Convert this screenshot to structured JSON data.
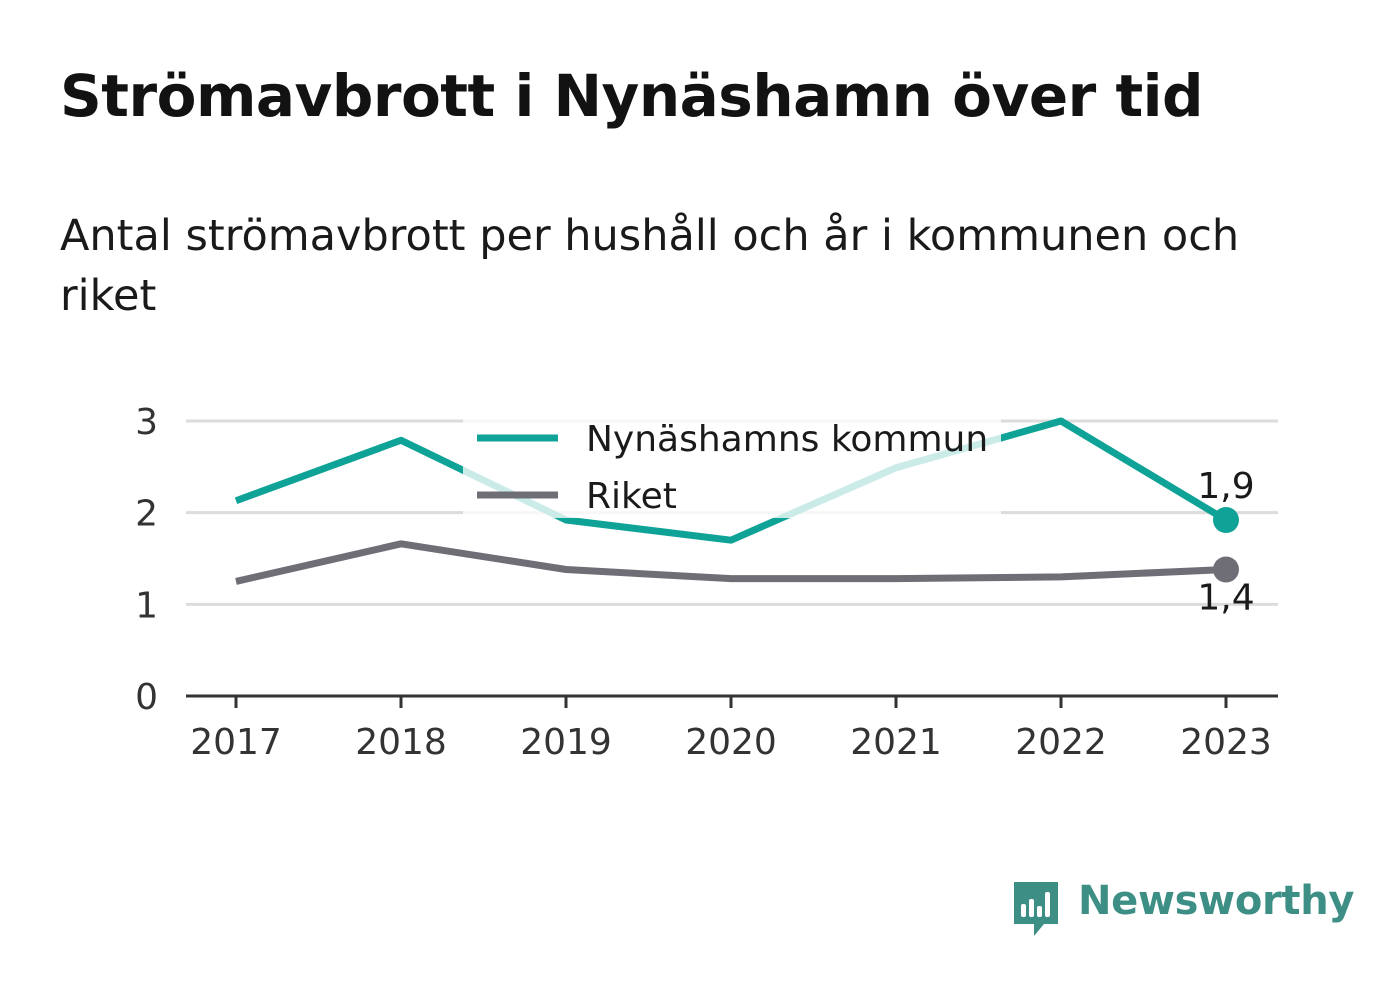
{
  "title": "Strömavbrott i Nynäshamn över tid",
  "subtitle": "Antal strömavbrott per hushåll och år i kommunen och riket",
  "brand": {
    "name": "Newsworthy",
    "color": "#3d8f86"
  },
  "chart_data": {
    "type": "line",
    "x": [
      "2017",
      "2018",
      "2019",
      "2020",
      "2021",
      "2022",
      "2023"
    ],
    "ylim": [
      0,
      3
    ],
    "yticks": [
      "0",
      "1",
      "2",
      "3"
    ],
    "grid": true,
    "legend": "top-center",
    "series": [
      {
        "name": "Nynäshamns kommun",
        "color": "#0fa398",
        "values": [
          2.13,
          2.79,
          1.92,
          1.7,
          2.49,
          3.0,
          1.92
        ],
        "end_label": "1,9"
      },
      {
        "name": "Riket",
        "color": "#6f6e76",
        "values": [
          1.25,
          1.66,
          1.38,
          1.28,
          1.28,
          1.3,
          1.38
        ],
        "end_label": "1,4"
      }
    ]
  }
}
